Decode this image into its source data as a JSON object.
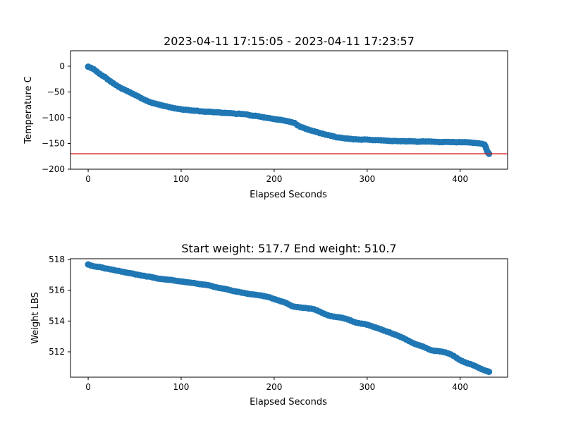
{
  "colors": {
    "series": "#1f77b4",
    "threshold": "#d62728",
    "axes": "#000000"
  },
  "chart_data": [
    {
      "type": "scatter",
      "title": "2023-04-11 17:15:05 - 2023-04-11 17:23:57",
      "xlabel": "Elapsed Seconds",
      "ylabel": "Temperature C",
      "xlim": [
        -19,
        451
      ],
      "ylim": [
        -200,
        30
      ],
      "xticks": [
        0,
        100,
        200,
        300,
        400
      ],
      "xtick_labels": [
        "0",
        "100",
        "200",
        "300",
        "400"
      ],
      "yticks": [
        0,
        -50,
        -100,
        -150,
        -200
      ],
      "ytick_labels": [
        "0",
        "−50",
        "−100",
        "−150",
        "−200"
      ],
      "hline": {
        "y": -170,
        "color": "#d62728"
      },
      "series": [
        {
          "marker": "circle",
          "x": [
            0,
            3,
            6,
            9,
            12,
            15,
            18,
            21,
            24,
            27,
            30,
            33,
            36,
            39,
            42,
            45,
            48,
            51,
            54,
            57,
            60,
            63,
            66,
            69,
            72,
            75,
            78,
            81,
            84,
            87,
            90,
            93,
            96,
            99,
            102,
            105,
            108,
            111,
            114,
            117,
            120,
            123,
            126,
            129,
            132,
            135,
            138,
            141,
            144,
            147,
            150,
            153,
            156,
            159,
            162,
            165,
            168,
            171,
            174,
            177,
            180,
            183,
            186,
            189,
            192,
            195,
            198,
            201,
            204,
            207,
            210,
            213,
            216,
            219,
            222,
            225,
            228,
            231,
            234,
            237,
            240,
            243,
            246,
            249,
            252,
            255,
            258,
            261,
            264,
            267,
            270,
            273,
            276,
            279,
            282,
            285,
            288,
            291,
            294,
            297,
            300,
            303,
            306,
            309,
            312,
            315,
            318,
            321,
            324,
            327,
            330,
            333,
            336,
            339,
            342,
            345,
            348,
            351,
            354,
            357,
            360,
            363,
            366,
            369,
            372,
            375,
            378,
            381,
            384,
            387,
            390,
            393,
            396,
            399,
            402,
            405,
            408,
            411,
            414,
            417,
            420,
            423,
            426,
            427,
            428,
            429,
            430,
            431
          ],
          "y": [
            -1.0,
            -3.2,
            -5.9,
            -10.0,
            -14.4,
            -18.1,
            -21.0,
            -25.6,
            -29.5,
            -33.1,
            -36.8,
            -40.1,
            -43.2,
            -45.5,
            -48.2,
            -50.8,
            -53.6,
            -56.2,
            -58.8,
            -62.1,
            -64.7,
            -67.1,
            -69.5,
            -71.3,
            -72.6,
            -74.0,
            -75.4,
            -77.0,
            -77.9,
            -79.4,
            -80.6,
            -81.7,
            -82.5,
            -83.3,
            -84.3,
            -84.6,
            -85.2,
            -86.0,
            -86.4,
            -86.4,
            -87.6,
            -87.8,
            -88.4,
            -88.2,
            -88.6,
            -89.2,
            -89.4,
            -89.6,
            -90.6,
            -90.7,
            -90.9,
            -91.1,
            -91.6,
            -92.6,
            -92.2,
            -92.8,
            -93.1,
            -93.8,
            -95.4,
            -96.2,
            -96.3,
            -97.2,
            -98.4,
            -99.4,
            -100.2,
            -100.9,
            -102.0,
            -102.9,
            -103.6,
            -104.2,
            -105.3,
            -106.4,
            -107.4,
            -109.0,
            -110.3,
            -114.4,
            -117.5,
            -119.2,
            -121.4,
            -123.3,
            -125.0,
            -126.3,
            -128.0,
            -129.8,
            -131.0,
            -132.8,
            -133.7,
            -134.9,
            -136.3,
            -138.1,
            -138.5,
            -139.3,
            -140.2,
            -140.4,
            -141.1,
            -141.8,
            -141.9,
            -142.4,
            -142.7,
            -142.3,
            -142.4,
            -143.0,
            -143.6,
            -143.5,
            -143.5,
            -143.9,
            -144.2,
            -144.6,
            -145.1,
            -145.4,
            -145.1,
            -145.5,
            -145.7,
            -145.4,
            -145.9,
            -145.6,
            -145.8,
            -146.0,
            -146.6,
            -146.4,
            -145.9,
            -146.3,
            -146.1,
            -146.4,
            -146.7,
            -147.0,
            -147.5,
            -147.3,
            -147.0,
            -147.1,
            -147.3,
            -147.3,
            -147.8,
            -147.3,
            -147.6,
            -147.5,
            -147.8,
            -148.2,
            -148.8,
            -149.1,
            -149.6,
            -150.6,
            -152.1,
            -155.0,
            -160.0,
            -165.0,
            -168.0,
            -170.0
          ]
        }
      ]
    },
    {
      "type": "scatter",
      "title": "Start weight: 517.7 End weight: 510.7",
      "xlabel": "Elapsed Seconds",
      "ylabel": "Weight LBS",
      "xlim": [
        -19,
        451
      ],
      "ylim": [
        510.35,
        518.05
      ],
      "xticks": [
        0,
        100,
        200,
        300,
        400
      ],
      "xtick_labels": [
        "0",
        "100",
        "200",
        "300",
        "400"
      ],
      "yticks": [
        512,
        514,
        516,
        518
      ],
      "ytick_labels": [
        "512",
        "514",
        "516",
        "518"
      ],
      "series": [
        {
          "marker": "circle",
          "x": [
            0,
            3,
            6,
            9,
            12,
            15,
            18,
            21,
            24,
            27,
            30,
            33,
            36,
            39,
            42,
            45,
            48,
            51,
            54,
            57,
            60,
            63,
            66,
            69,
            72,
            75,
            78,
            81,
            84,
            87,
            90,
            93,
            96,
            99,
            102,
            105,
            108,
            111,
            114,
            117,
            120,
            123,
            126,
            129,
            132,
            135,
            138,
            141,
            144,
            147,
            150,
            153,
            156,
            159,
            162,
            165,
            168,
            171,
            174,
            177,
            180,
            183,
            186,
            189,
            192,
            195,
            198,
            201,
            204,
            207,
            210,
            213,
            216,
            219,
            222,
            225,
            228,
            231,
            234,
            237,
            240,
            243,
            246,
            249,
            252,
            255,
            258,
            261,
            264,
            267,
            270,
            273,
            276,
            279,
            282,
            285,
            288,
            291,
            294,
            297,
            300,
            303,
            306,
            309,
            312,
            315,
            318,
            321,
            324,
            327,
            330,
            333,
            336,
            339,
            342,
            345,
            348,
            351,
            354,
            357,
            360,
            363,
            366,
            369,
            372,
            375,
            378,
            381,
            384,
            387,
            390,
            393,
            396,
            399,
            402,
            405,
            408,
            411,
            414,
            417,
            420,
            423,
            426,
            429,
            431
          ],
          "y": [
            517.68,
            517.61,
            517.56,
            517.53,
            517.52,
            517.48,
            517.42,
            517.4,
            517.36,
            517.33,
            517.28,
            517.26,
            517.21,
            517.18,
            517.14,
            517.11,
            517.08,
            517.03,
            517.0,
            516.96,
            516.94,
            516.9,
            516.89,
            516.84,
            516.8,
            516.76,
            516.74,
            516.72,
            516.7,
            516.68,
            516.67,
            516.63,
            516.6,
            516.58,
            516.56,
            516.53,
            516.51,
            516.49,
            516.47,
            516.43,
            516.4,
            516.38,
            516.36,
            516.33,
            516.29,
            516.23,
            516.19,
            516.15,
            516.12,
            516.09,
            516.05,
            516.0,
            515.95,
            515.92,
            515.89,
            515.85,
            515.82,
            515.78,
            515.75,
            515.73,
            515.71,
            515.68,
            515.66,
            515.62,
            515.58,
            515.54,
            515.47,
            515.41,
            515.35,
            515.29,
            515.24,
            515.17,
            515.07,
            514.98,
            514.93,
            514.91,
            514.88,
            514.86,
            514.85,
            514.82,
            514.8,
            514.76,
            514.69,
            514.61,
            514.52,
            514.44,
            514.37,
            514.32,
            514.29,
            514.26,
            514.24,
            514.21,
            514.16,
            514.11,
            514.04,
            513.96,
            513.9,
            513.86,
            513.83,
            513.81,
            513.76,
            513.7,
            513.64,
            513.58,
            513.52,
            513.46,
            513.38,
            513.32,
            513.26,
            513.18,
            513.12,
            513.05,
            512.97,
            512.89,
            512.79,
            512.7,
            512.6,
            512.52,
            512.46,
            512.4,
            512.34,
            512.26,
            512.17,
            512.1,
            512.07,
            512.05,
            512.03,
            512.0,
            511.96,
            511.9,
            511.83,
            511.73,
            511.61,
            511.49,
            511.4,
            511.32,
            511.25,
            511.2,
            511.13,
            511.05,
            510.96,
            510.87,
            510.8,
            510.74,
            510.7
          ]
        }
      ]
    }
  ]
}
